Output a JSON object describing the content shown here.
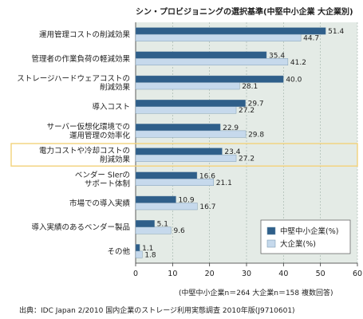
{
  "chart_data": {
    "type": "bar",
    "orientation": "horizontal",
    "title": "シン・プロビジョニングの選択基準(中堅中小企業 大企業別)",
    "categories": [
      [
        "運用管理コストの削減効果"
      ],
      [
        "管理者の作業負荷の軽減効果"
      ],
      [
        "ストレージハードウェアコストの",
        "削減効果"
      ],
      [
        "導入コスト"
      ],
      [
        "サーバー仮想化環境での",
        "運用管理の効率化"
      ],
      [
        "電力コストや冷却コストの",
        "削減効果"
      ],
      [
        "ベンダー SIerの",
        "サポート体制"
      ],
      [
        "市場での導入実績"
      ],
      [
        "導入実績のあるベンダー製品"
      ],
      [
        "その他"
      ]
    ],
    "series": [
      {
        "name": "中堅中小企業(%)",
        "color": "#2f5f8a",
        "values": [
          51.4,
          35.4,
          40.0,
          29.7,
          22.9,
          23.4,
          16.6,
          10.9,
          5.1,
          1.1
        ]
      },
      {
        "name": "大企業(%)",
        "color": "#c6d9ec",
        "values": [
          44.7,
          41.2,
          28.1,
          27.2,
          29.8,
          27.2,
          21.1,
          16.7,
          9.6,
          1.8
        ]
      }
    ],
    "value_labels": [
      [
        "51.4",
        "35.4",
        "40.0",
        "29.7",
        "22.9",
        "23.4",
        "16.6",
        "10.9",
        "5.1",
        "1.1"
      ],
      [
        "44.7",
        "41.2",
        "28.1",
        "27.2",
        "29.8",
        "27.2",
        "21.1",
        "16.7",
        "9.6",
        "1.8"
      ]
    ],
    "xlim": [
      0,
      60
    ],
    "xticks": [
      "0",
      "10",
      "20",
      "30",
      "40",
      "50",
      "60"
    ],
    "highlighted_category_index": 5,
    "highlight_color": "#f3d27a",
    "legend_placement": "bottom-right",
    "plot_background": "#e4ebe6"
  },
  "note": "(中堅中小企業n＝264 大企業n＝158 複数回答)",
  "source": "出典：IDC Japan 2/2010 国内企業のストレージ利用実態調査 2010年版(J9710601)"
}
